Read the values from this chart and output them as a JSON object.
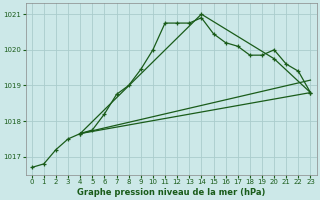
{
  "xlabel": "Graphe pression niveau de la mer (hPa)",
  "ylim": [
    1016.5,
    1021.3
  ],
  "xlim": [
    -0.5,
    23.5
  ],
  "yticks": [
    1017,
    1018,
    1019,
    1020,
    1021
  ],
  "xticks": [
    0,
    1,
    2,
    3,
    4,
    5,
    6,
    7,
    8,
    9,
    10,
    11,
    12,
    13,
    14,
    15,
    16,
    17,
    18,
    19,
    20,
    21,
    22,
    23
  ],
  "bg_color": "#cce8e8",
  "grid_color": "#aacccc",
  "line_color": "#1a5c1a",
  "line1_x": [
    0,
    1,
    2,
    3,
    4,
    5,
    6,
    7,
    8,
    9,
    10,
    11,
    12,
    13,
    14,
    15,
    16,
    17,
    18,
    19,
    20,
    21,
    22,
    23
  ],
  "line1_y": [
    1016.7,
    1016.8,
    1017.2,
    1017.5,
    1017.65,
    1017.75,
    1018.2,
    1018.75,
    1019.0,
    1019.45,
    1020.0,
    1020.75,
    1020.75,
    1020.75,
    1020.9,
    1020.45,
    1020.2,
    1020.1,
    1019.85,
    1019.85,
    1020.0,
    1019.6,
    1019.4,
    1018.8
  ],
  "line2_x": [
    4,
    23
  ],
  "line2_y": [
    1017.65,
    1018.8
  ],
  "line3_x": [
    4,
    14,
    20,
    23
  ],
  "line3_y": [
    1017.65,
    1021.0,
    1019.75,
    1018.8
  ],
  "line4_x": [
    4,
    23
  ],
  "line4_y": [
    1017.65,
    1019.15
  ]
}
